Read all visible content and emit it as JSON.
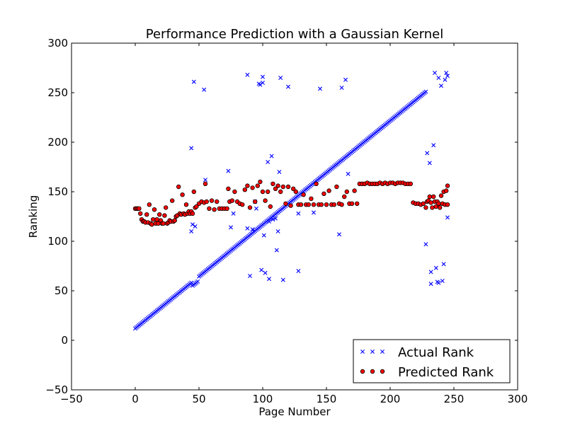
{
  "chart_data": {
    "type": "scatter",
    "title": "Performance Prediction with a Gaussian Kernel",
    "xlabel": "Page Number",
    "ylabel": "Ranking",
    "xlim": [
      -50,
      300
    ],
    "ylim": [
      -50,
      300
    ],
    "xticks": [
      -50,
      0,
      50,
      100,
      150,
      200,
      250,
      300
    ],
    "yticks": [
      -50,
      0,
      50,
      100,
      150,
      200,
      250,
      300
    ],
    "xtick_labels": [
      "−50",
      "0",
      "50",
      "100",
      "150",
      "200",
      "250",
      "300"
    ],
    "ytick_labels": [
      "−50",
      "0",
      "50",
      "100",
      "150",
      "200",
      "250",
      "300"
    ],
    "grid": false,
    "legend_position": "lower-right",
    "series": [
      {
        "name": "Actual Rank",
        "marker": "x",
        "color": "#0000ff",
        "diagonal_trend": {
          "x_start": 0,
          "x_end": 228,
          "y_start": 12,
          "y_end": 251
        },
        "dip": {
          "x_start": 45,
          "x_end": 49,
          "drop": 4
        },
        "outliers": [
          [
            44,
            194
          ],
          [
            44,
            110
          ],
          [
            45,
            117
          ],
          [
            46,
            261
          ],
          [
            47,
            115
          ],
          [
            54,
            253
          ],
          [
            55,
            162
          ],
          [
            73,
            171
          ],
          [
            75,
            114
          ],
          [
            77,
            128
          ],
          [
            88,
            268
          ],
          [
            88,
            113
          ],
          [
            90,
            65
          ],
          [
            92,
            112
          ],
          [
            94,
            140
          ],
          [
            95,
            133
          ],
          [
            97,
            259
          ],
          [
            98,
            258
          ],
          [
            99,
            71
          ],
          [
            100,
            260
          ],
          [
            100,
            266
          ],
          [
            101,
            106
          ],
          [
            102,
            68
          ],
          [
            104,
            180
          ],
          [
            105,
            62
          ],
          [
            107,
            186
          ],
          [
            105,
            120
          ],
          [
            108,
            122
          ],
          [
            110,
            123
          ],
          [
            111,
            91
          ],
          [
            112,
            110
          ],
          [
            113,
            170
          ],
          [
            114,
            265
          ],
          [
            116,
            61
          ],
          [
            120,
            256
          ],
          [
            128,
            70
          ],
          [
            128,
            128
          ],
          [
            140,
            129
          ],
          [
            145,
            254
          ],
          [
            160,
            107
          ],
          [
            162,
            255
          ],
          [
            165,
            263
          ],
          [
            167,
            168
          ],
          [
            228,
            97
          ],
          [
            229,
            189
          ],
          [
            231,
            179
          ],
          [
            232,
            57
          ],
          [
            232,
            69
          ],
          [
            234,
            197
          ],
          [
            235,
            270
          ],
          [
            236,
            73
          ],
          [
            237,
            59
          ],
          [
            238,
            265
          ],
          [
            238,
            58
          ],
          [
            240,
            257
          ],
          [
            241,
            60
          ],
          [
            242,
            77
          ],
          [
            243,
            263
          ],
          [
            244,
            270
          ],
          [
            245,
            267
          ],
          [
            245,
            124
          ]
        ]
      },
      {
        "name": "Predicted Rank",
        "marker": "o",
        "color": "#ff0000",
        "points": [
          [
            0,
            133
          ],
          [
            1,
            133
          ],
          [
            2,
            133
          ],
          [
            3,
            133
          ],
          [
            4,
            128
          ],
          [
            5,
            122
          ],
          [
            6,
            120
          ],
          [
            7,
            120
          ],
          [
            8,
            119
          ],
          [
            9,
            127
          ],
          [
            10,
            119
          ],
          [
            11,
            137
          ],
          [
            12,
            118
          ],
          [
            13,
            117
          ],
          [
            14,
            122
          ],
          [
            15,
            132
          ],
          [
            16,
            118
          ],
          [
            17,
            122
          ],
          [
            18,
            118
          ],
          [
            19,
            127
          ],
          [
            20,
            121
          ],
          [
            21,
            118
          ],
          [
            22,
            118
          ],
          [
            23,
            126
          ],
          [
            24,
            134
          ],
          [
            25,
            118
          ],
          [
            26,
            119
          ],
          [
            27,
            121
          ],
          [
            28,
            120
          ],
          [
            29,
            141
          ],
          [
            30,
            120
          ],
          [
            31,
            121
          ],
          [
            32,
            125
          ],
          [
            33,
            126
          ],
          [
            34,
            155
          ],
          [
            35,
            128
          ],
          [
            36,
            127
          ],
          [
            37,
            147
          ],
          [
            38,
            128
          ],
          [
            39,
            127
          ],
          [
            40,
            137
          ],
          [
            41,
            128
          ],
          [
            42,
            130
          ],
          [
            43,
            128
          ],
          [
            44,
            130
          ],
          [
            45,
            128
          ],
          [
            46,
            150
          ],
          [
            47,
            134
          ],
          [
            48,
            135
          ],
          [
            50,
            138
          ],
          [
            52,
            140
          ],
          [
            54,
            139
          ],
          [
            55,
            158
          ],
          [
            56,
            140
          ],
          [
            58,
            133
          ],
          [
            60,
            141
          ],
          [
            62,
            132
          ],
          [
            64,
            140
          ],
          [
            66,
            133
          ],
          [
            68,
            133
          ],
          [
            70,
            133
          ],
          [
            72,
            133
          ],
          [
            73,
            153
          ],
          [
            74,
            140
          ],
          [
            76,
            141
          ],
          [
            78,
            150
          ],
          [
            80,
            140
          ],
          [
            82,
            138
          ],
          [
            84,
            137
          ],
          [
            86,
            152
          ],
          [
            88,
            156
          ],
          [
            90,
            134
          ],
          [
            92,
            154
          ],
          [
            94,
            140
          ],
          [
            96,
            156
          ],
          [
            98,
            160
          ],
          [
            100,
            150
          ],
          [
            102,
            141
          ],
          [
            104,
            150
          ],
          [
            106,
            135
          ],
          [
            108,
            158
          ],
          [
            110,
            153
          ],
          [
            112,
            156
          ],
          [
            114,
            150
          ],
          [
            116,
            155
          ],
          [
            118,
            138
          ],
          [
            120,
            155
          ],
          [
            122,
            136
          ],
          [
            124,
            153
          ],
          [
            126,
            150
          ],
          [
            128,
            137
          ],
          [
            130,
            137
          ],
          [
            132,
            147
          ],
          [
            134,
            137
          ],
          [
            136,
            137
          ],
          [
            138,
            143
          ],
          [
            140,
            137
          ],
          [
            142,
            158
          ],
          [
            144,
            137
          ],
          [
            146,
            137
          ],
          [
            148,
            148
          ],
          [
            150,
            137
          ],
          [
            152,
            151
          ],
          [
            154,
            137
          ],
          [
            156,
            137
          ],
          [
            158,
            155
          ],
          [
            160,
            138
          ],
          [
            162,
            137
          ],
          [
            164,
            145
          ],
          [
            166,
            150
          ],
          [
            168,
            138
          ],
          [
            170,
            138
          ],
          [
            172,
            151
          ],
          [
            174,
            138
          ],
          [
            176,
            158
          ],
          [
            178,
            158
          ],
          [
            180,
            158
          ],
          [
            182,
            159
          ],
          [
            184,
            158
          ],
          [
            186,
            158
          ],
          [
            188,
            158
          ],
          [
            190,
            158
          ],
          [
            192,
            159
          ],
          [
            194,
            158
          ],
          [
            196,
            159
          ],
          [
            198,
            158
          ],
          [
            200,
            159
          ],
          [
            202,
            159
          ],
          [
            204,
            158
          ],
          [
            206,
            159
          ],
          [
            208,
            159
          ],
          [
            210,
            159
          ],
          [
            212,
            158
          ],
          [
            214,
            158
          ],
          [
            216,
            158
          ],
          [
            218,
            139
          ],
          [
            220,
            138
          ],
          [
            222,
            138
          ],
          [
            224,
            137
          ],
          [
            226,
            138
          ],
          [
            228,
            134
          ],
          [
            229,
            140
          ],
          [
            230,
            141
          ],
          [
            231,
            145
          ],
          [
            232,
            139
          ],
          [
            233,
            134
          ],
          [
            234,
            145
          ],
          [
            235,
            140
          ],
          [
            236,
            135
          ],
          [
            237,
            140
          ],
          [
            238,
            138
          ],
          [
            239,
            134
          ],
          [
            240,
            146
          ],
          [
            241,
            138
          ],
          [
            242,
            150
          ],
          [
            243,
            137
          ],
          [
            244,
            151
          ],
          [
            245,
            156
          ],
          [
            245,
            137
          ]
        ]
      }
    ]
  }
}
